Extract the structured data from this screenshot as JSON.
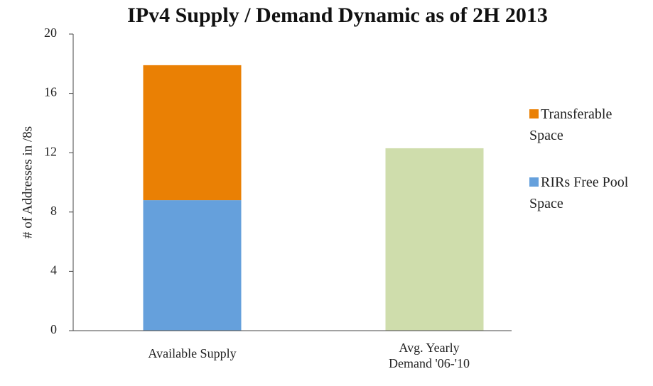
{
  "chart_data": {
    "type": "stacked_bar",
    "title": "IPv4 Supply / Demand Dynamic as of 2H 2013",
    "y_label": "# of Addresses in /8s",
    "categories": [
      "Available Supply",
      "Avg. Yearly Demand '06-'10"
    ],
    "series": [
      {
        "name": "RIRs Free Pool Space",
        "color": "#65a0dc",
        "values": [
          8.8,
          null
        ]
      },
      {
        "name": "Transferable Space",
        "color": "#ea8004",
        "values": [
          9.1,
          null
        ]
      },
      {
        "color": "#cfddac",
        "values": [
          null,
          12.3
        ]
      }
    ],
    "ylim": [
      0,
      20
    ],
    "yticks": [
      0,
      4,
      8,
      12,
      16,
      20
    ],
    "legend": "right"
  }
}
